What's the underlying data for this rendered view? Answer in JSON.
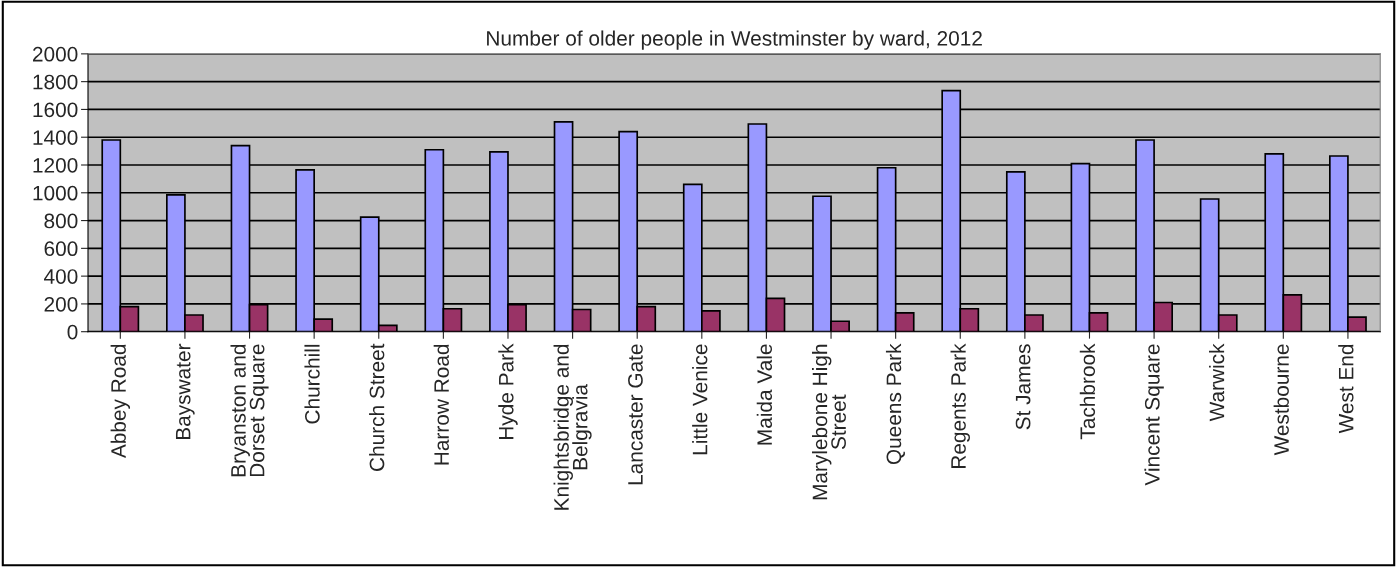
{
  "chart_data": {
    "type": "bar",
    "title": "Number of older people in Westminster by ward, 2012",
    "categories": [
      "Abbey Road",
      "Bayswater",
      "Bryanston and Dorset Square",
      "Churchill",
      "Church Street",
      "Harrow Road",
      "Hyde Park",
      "Knightsbridge and Belgravia",
      "Lancaster Gate",
      "Little Venice",
      "Maida Vale",
      "Marylebone High Street",
      "Queens Park",
      "Regents Park",
      "St James",
      "Tachbrook",
      "Vincent Square",
      "Warwick",
      "Westbourne",
      "West End"
    ],
    "series": [
      {
        "color": "#9999ff",
        "values": [
          1380,
          985,
          1340,
          1165,
          825,
          1310,
          1295,
          1510,
          1440,
          1060,
          1495,
          975,
          1180,
          1735,
          1150,
          1210,
          1380,
          955,
          1280,
          1265
        ]
      },
      {
        "color": "#993366",
        "values": [
          180,
          120,
          195,
          90,
          45,
          165,
          195,
          160,
          180,
          150,
          240,
          75,
          135,
          165,
          120,
          135,
          210,
          120,
          265,
          105
        ]
      }
    ],
    "ylim": [
      0,
      2000
    ],
    "yticks": [
      0,
      200,
      400,
      600,
      800,
      1000,
      1200,
      1400,
      1600,
      1800,
      2000
    ],
    "grid": "y",
    "legend": false
  }
}
